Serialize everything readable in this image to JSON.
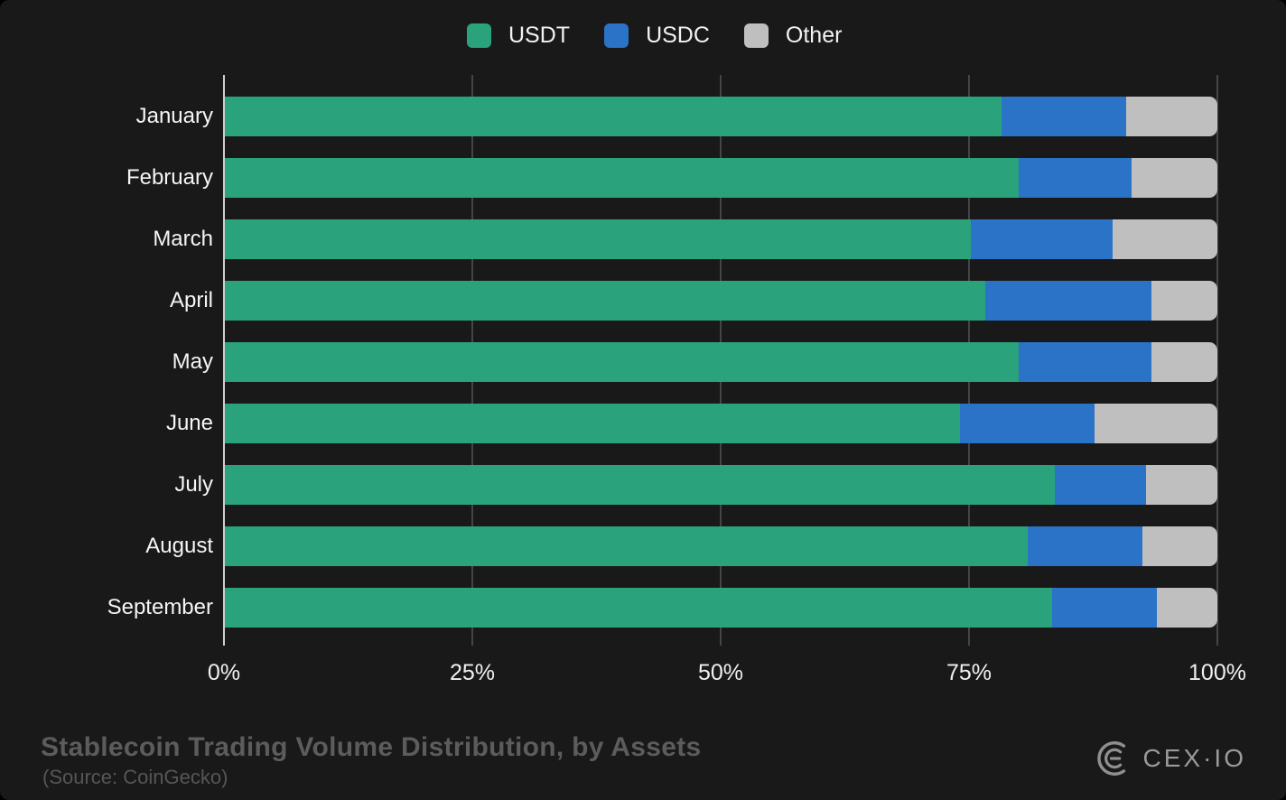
{
  "legend": {
    "items": [
      {
        "id": "usdt",
        "label": "USDT",
        "color": "#2aa37c"
      },
      {
        "id": "usdc",
        "label": "USDC",
        "color": "#2b73c7"
      },
      {
        "id": "other",
        "label": "Other",
        "color": "#bfbfbf"
      }
    ]
  },
  "chart_data": {
    "type": "bar",
    "orientation": "horizontal",
    "stacked": true,
    "categories": [
      "January",
      "February",
      "March",
      "April",
      "May",
      "June",
      "July",
      "August",
      "September"
    ],
    "series": [
      {
        "name": "USDT",
        "color": "#2aa37c",
        "values": [
          78.3,
          80.0,
          75.2,
          76.6,
          80.0,
          74.1,
          83.6,
          80.9,
          83.4
        ]
      },
      {
        "name": "USDC",
        "color": "#2b73c7",
        "values": [
          12.5,
          11.4,
          14.3,
          16.8,
          13.4,
          13.5,
          9.2,
          11.6,
          10.5
        ]
      },
      {
        "name": "Other",
        "color": "#bfbfbf",
        "values": [
          9.2,
          8.6,
          10.5,
          6.6,
          6.6,
          12.4,
          7.2,
          7.5,
          6.1
        ]
      }
    ],
    "xlim": [
      0,
      100
    ],
    "xticks": [
      0,
      25,
      50,
      75,
      100
    ],
    "xtick_labels": [
      "0%",
      "25%",
      "50%",
      "75%",
      "100%"
    ],
    "grid": true,
    "legend_position": "top",
    "axis_color": "#cfcfcf",
    "gridline_color": "#454545",
    "title": "Stablecoin Trading Volume Distribution, by Assets",
    "xlabel": "",
    "ylabel": ""
  },
  "footer": {
    "title": "Stablecoin Trading Volume Distribution, by Assets",
    "source": "(Source: CoinGecko)",
    "brand_text": "CEX·IO"
  }
}
